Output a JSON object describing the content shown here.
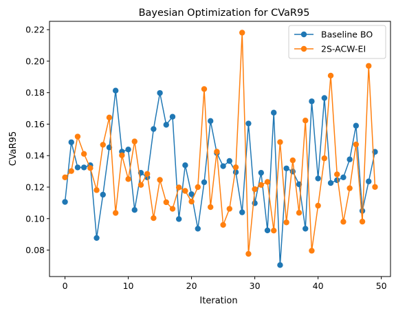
{
  "chart_data": {
    "type": "line",
    "title": "Bayesian Optimization for CVaR95",
    "xlabel": "Iteration",
    "ylabel": "CVaR95",
    "xlim": [
      -2.45,
      51.45
    ],
    "ylim": [
      0.0632,
      0.2253
    ],
    "xticks": [
      0,
      10,
      20,
      30,
      40,
      50
    ],
    "yticks": [
      0.08,
      0.1,
      0.12,
      0.14,
      0.16,
      0.18,
      0.2,
      0.22
    ],
    "ytick_labels": [
      "0.08",
      "0.10",
      "0.12",
      "0.14",
      "0.16",
      "0.18",
      "0.20",
      "0.22"
    ],
    "grid": false,
    "legend": "top-right",
    "x": [
      0,
      1,
      2,
      3,
      4,
      5,
      6,
      7,
      8,
      9,
      10,
      11,
      12,
      13,
      14,
      15,
      16,
      17,
      18,
      19,
      20,
      21,
      22,
      23,
      24,
      25,
      26,
      27,
      28,
      29,
      30,
      31,
      32,
      33,
      34,
      35,
      36,
      37,
      38,
      39,
      40,
      41,
      42,
      43,
      44,
      45,
      46,
      47,
      48,
      49
    ],
    "series": [
      {
        "name": "Baseline BO",
        "color": "#1f77b4",
        "values": [
          0.1106,
          0.1485,
          0.1325,
          0.1325,
          0.1339,
          0.0877,
          0.1152,
          0.1452,
          0.1813,
          0.1425,
          0.1439,
          0.1055,
          0.1291,
          0.1262,
          0.1569,
          0.1798,
          0.1596,
          0.1647,
          0.0997,
          0.1339,
          0.1155,
          0.0936,
          0.1231,
          0.162,
          0.1416,
          0.1333,
          0.1366,
          0.1295,
          0.104,
          0.1604,
          0.1098,
          0.1291,
          0.0925,
          0.1673,
          0.0705,
          0.1319,
          0.1299,
          0.1218,
          0.0936,
          0.1745,
          0.1255,
          0.1766,
          0.1226,
          0.1244,
          0.1262,
          0.1376,
          0.159,
          0.1049,
          0.1236,
          0.1424
        ]
      },
      {
        "name": "2S-ACW-EI",
        "color": "#ff7f0e",
        "values": [
          0.1262,
          0.1302,
          0.1521,
          0.1411,
          0.1321,
          0.1181,
          0.1469,
          0.1642,
          0.1036,
          0.1402,
          0.1251,
          0.149,
          0.1214,
          0.1284,
          0.1003,
          0.1246,
          0.1104,
          0.1062,
          0.1198,
          0.1176,
          0.1108,
          0.12,
          0.1823,
          0.1073,
          0.1425,
          0.096,
          0.1062,
          0.1326,
          0.2181,
          0.0776,
          0.1187,
          0.1214,
          0.1233,
          0.0924,
          0.1486,
          0.0976,
          0.137,
          0.1037,
          0.1623,
          0.0796,
          0.1082,
          0.1383,
          0.1908,
          0.1281,
          0.098,
          0.1193,
          0.1471,
          0.0981,
          0.197,
          0.1201
        ]
      }
    ]
  }
}
